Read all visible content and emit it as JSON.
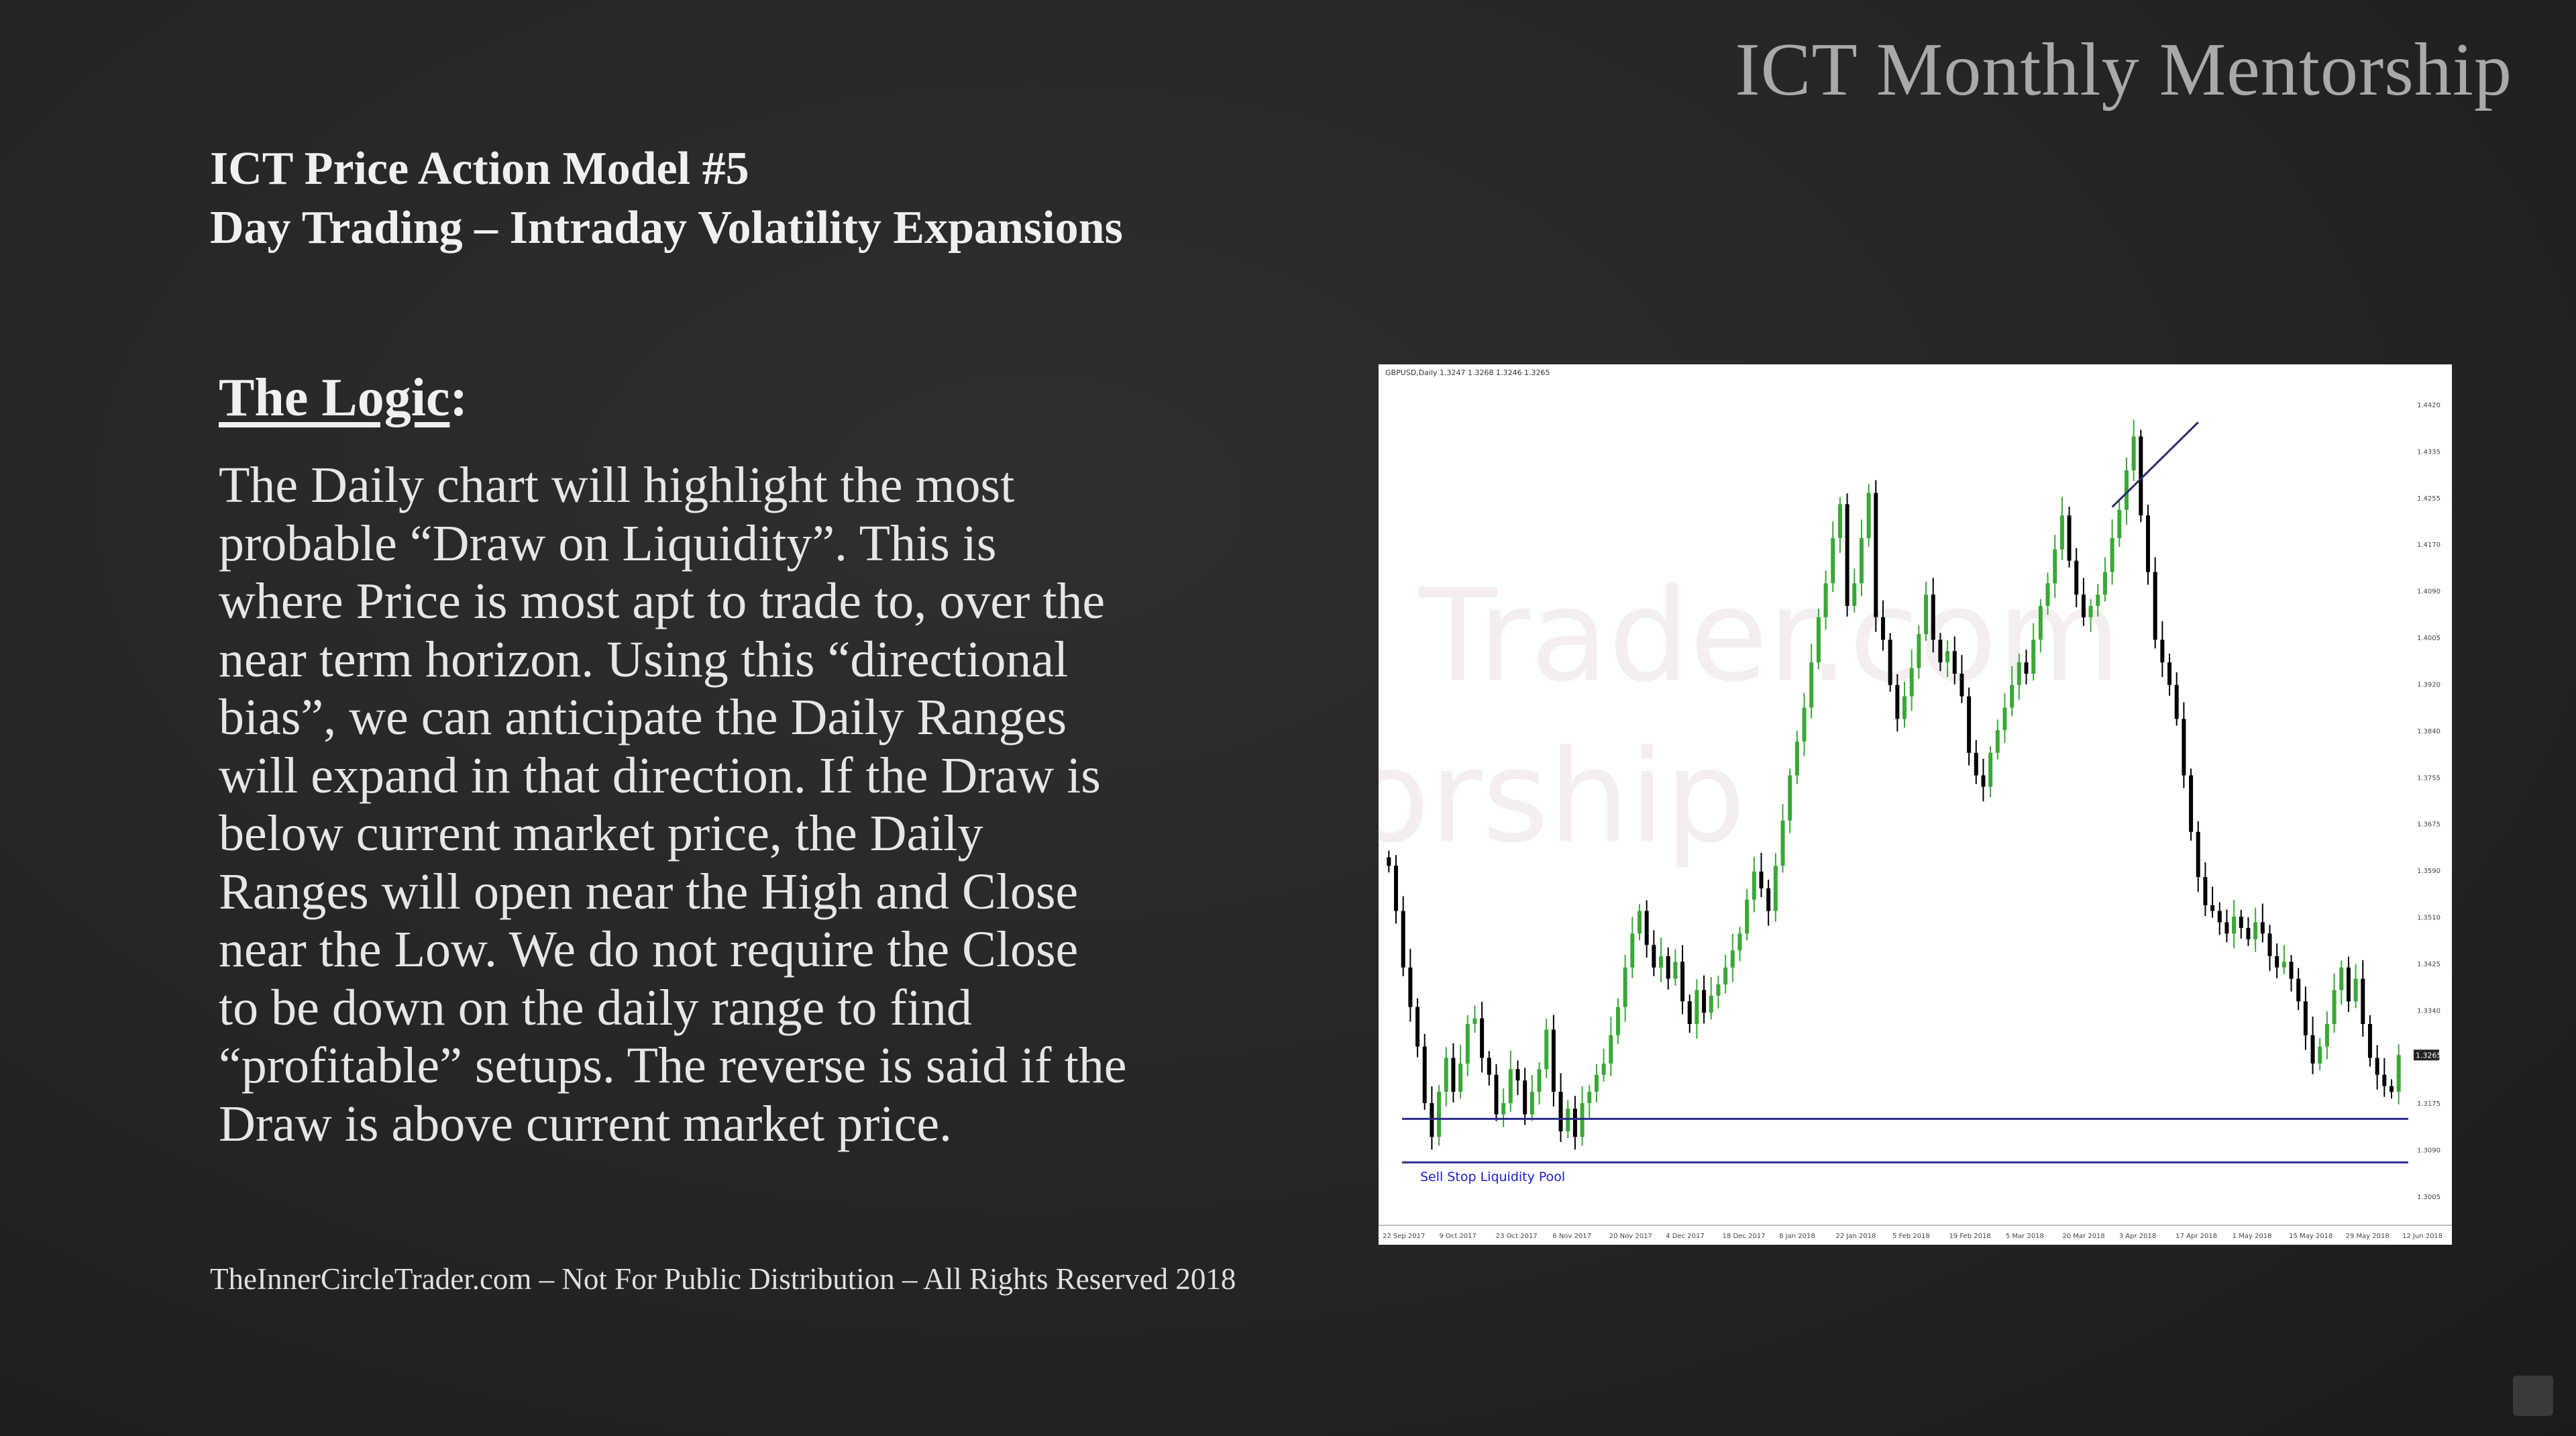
{
  "brand": "ICT Monthly Mentorship",
  "header": {
    "title": "ICT Price Action Model #5",
    "subtitle": "Day Trading – Intraday Volatility Expansions"
  },
  "logic": {
    "heading": "The Logic",
    "colon": ":",
    "lines": [
      "The Daily chart will highlight the most",
      "probable “Draw on Liquidity”.  This is",
      "where Price is most apt to trade to, over the",
      "near term horizon.  Using this “directional",
      "bias”, we can anticipate the Daily Ranges",
      "will expand in that direction.  If the Draw is",
      "below current market price, the Daily",
      "Ranges will open near the High and Close",
      "near the Low.  We do not require the Close",
      "to be down on the daily range to find",
      "“profitable” setups.  The reverse is said if the",
      "Draw is above current market price."
    ]
  },
  "footer": "TheInnerCircleTrader.com – Not For Public Distribution – All Rights Reserved 2018",
  "chart": {
    "symbol_label": "GBPUSD,Daily 1.3247 1.3268 1.3246 1.3265",
    "watermark_lines": [
      "Trader.com",
      "orship"
    ],
    "annotation": "Sell Stop Liquidity Pool",
    "current_price_label": "1.3265",
    "colors": {
      "up": "#39a935",
      "down": "#000000",
      "level": "#2b2b8a",
      "annotation": "#1a1ad0"
    }
  },
  "chart_data": {
    "type": "candlestick",
    "symbol": "GBPUSD",
    "timeframe": "Daily",
    "x_tick_labels": [
      "22 Sep 2017",
      "9 Oct 2017",
      "23 Oct 2017",
      "6 Nov 2017",
      "20 Nov 2017",
      "4 Dec 2017",
      "18 Dec 2017",
      "8 Jan 2018",
      "22 Jan 2018",
      "5 Feb 2018",
      "19 Feb 2018",
      "5 Mar 2018",
      "20 Mar 2018",
      "3 Apr 2018",
      "17 Apr 2018",
      "1 May 2018",
      "15 May 2018",
      "29 May 2018",
      "12 Jun 2018"
    ],
    "y_tick_labels": [
      "1.4420",
      "1.4335",
      "1.4255",
      "1.4170",
      "1.4090",
      "1.4005",
      "1.3920",
      "1.3840",
      "1.3755",
      "1.3675",
      "1.3590",
      "1.3510",
      "1.3425",
      "1.3340",
      "1.3265",
      "1.3175",
      "1.3090",
      "1.3005"
    ],
    "ylim": [
      1.2985,
      1.444
    ],
    "levels": [
      {
        "label": "",
        "value": 1.3152
      },
      {
        "label": "Sell Stop Liquidity Pool",
        "value": 1.3075
      }
    ],
    "trendline": {
      "from": {
        "price": 1.4235
      },
      "to": {
        "price": 1.4385
      }
    },
    "closes": [
      1.36,
      1.352,
      1.342,
      1.335,
      1.328,
      1.318,
      1.312,
      1.32,
      1.326,
      1.32,
      1.325,
      1.332,
      1.333,
      1.326,
      1.323,
      1.316,
      1.318,
      1.324,
      1.322,
      1.316,
      1.32,
      1.324,
      1.331,
      1.32,
      1.313,
      1.317,
      1.312,
      1.318,
      1.32,
      1.323,
      1.325,
      1.33,
      1.335,
      1.342,
      1.348,
      1.352,
      1.346,
      1.342,
      1.344,
      1.34,
      1.343,
      1.336,
      1.332,
      1.338,
      1.334,
      1.337,
      1.339,
      1.342,
      1.345,
      1.348,
      1.354,
      1.359,
      1.356,
      1.352,
      1.36,
      1.368,
      1.376,
      1.382,
      1.388,
      1.396,
      1.404,
      1.41,
      1.418,
      1.424,
      1.406,
      1.41,
      1.418,
      1.426,
      1.404,
      1.4,
      1.392,
      1.386,
      1.39,
      1.395,
      1.401,
      1.408,
      1.4,
      1.396,
      1.398,
      1.394,
      1.39,
      1.38,
      1.376,
      1.374,
      1.38,
      1.384,
      1.388,
      1.392,
      1.396,
      1.394,
      1.4,
      1.406,
      1.41,
      1.416,
      1.422,
      1.414,
      1.408,
      1.404,
      1.406,
      1.408,
      1.412,
      1.418,
      1.423,
      1.43,
      1.436,
      1.422,
      1.412,
      1.4,
      1.396,
      1.392,
      1.386,
      1.376,
      1.366,
      1.358,
      1.353,
      1.352,
      1.35,
      1.348,
      1.351,
      1.349,
      1.347,
      1.35,
      1.348,
      1.344,
      1.342,
      1.343,
      1.34,
      1.336,
      1.33,
      1.325,
      1.328,
      1.332,
      1.338,
      1.342,
      1.336,
      1.34,
      1.332,
      1.326,
      1.323,
      1.321,
      1.32,
      1.3265
    ]
  }
}
